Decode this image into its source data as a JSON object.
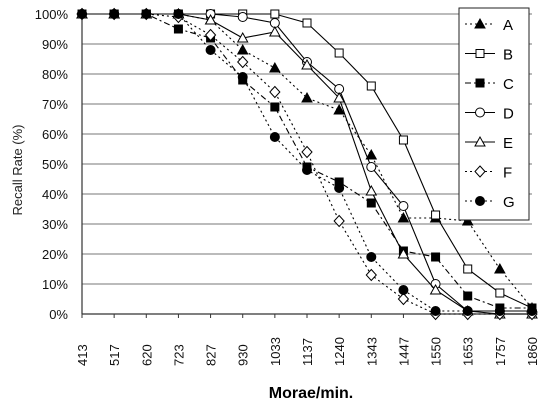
{
  "chart_data": {
    "type": "line",
    "title": "",
    "xlabel": "Morae/min.",
    "ylabel": "Recall Rate (%)",
    "categories": [
      "413",
      "517",
      "620",
      "723",
      "827",
      "930",
      "1033",
      "1137",
      "1240",
      "1343",
      "1447",
      "1550",
      "1653",
      "1757",
      "1860"
    ],
    "ylim": [
      0,
      100
    ],
    "yticks": [
      0,
      10,
      20,
      30,
      40,
      50,
      60,
      70,
      80,
      90,
      100
    ],
    "ytick_labels": [
      "0%",
      "10%",
      "20%",
      "30%",
      "40%",
      "50%",
      "60%",
      "70%",
      "80%",
      "90%",
      "100%"
    ],
    "grid": "horizontal",
    "legend_position": "top-right",
    "series": [
      {
        "name": "A",
        "marker": "triangle-filled",
        "line": "dotted",
        "values": [
          100,
          100,
          100,
          100,
          98,
          88,
          82,
          72,
          68,
          53,
          32,
          32,
          31,
          15,
          2
        ]
      },
      {
        "name": "B",
        "marker": "square-open",
        "line": "solid",
        "values": [
          100,
          100,
          100,
          100,
          100,
          100,
          100,
          97,
          87,
          76,
          58,
          33,
          15,
          7,
          2
        ]
      },
      {
        "name": "C",
        "marker": "square-filled",
        "line": "dashdot",
        "values": [
          100,
          100,
          100,
          95,
          92,
          78,
          69,
          49,
          44,
          37,
          21,
          19,
          6,
          2,
          2
        ]
      },
      {
        "name": "D",
        "marker": "circle-open",
        "line": "solid",
        "values": [
          100,
          100,
          100,
          100,
          100,
          99,
          97,
          84,
          75,
          49,
          36,
          10,
          1,
          1,
          1
        ]
      },
      {
        "name": "E",
        "marker": "triangle-open",
        "line": "solid",
        "values": [
          100,
          100,
          100,
          100,
          98,
          92,
          94,
          83,
          72,
          41,
          20,
          8,
          1,
          0,
          0
        ]
      },
      {
        "name": "F",
        "marker": "diamond-open",
        "line": "dotted",
        "values": [
          100,
          100,
          100,
          99,
          93,
          84,
          74,
          54,
          31,
          13,
          5,
          0,
          0,
          0,
          0
        ]
      },
      {
        "name": "G",
        "marker": "circle-filled",
        "line": "dotted",
        "values": [
          100,
          100,
          100,
          100,
          88,
          79,
          59,
          48,
          42,
          19,
          8,
          1,
          1,
          1,
          1
        ]
      }
    ]
  }
}
